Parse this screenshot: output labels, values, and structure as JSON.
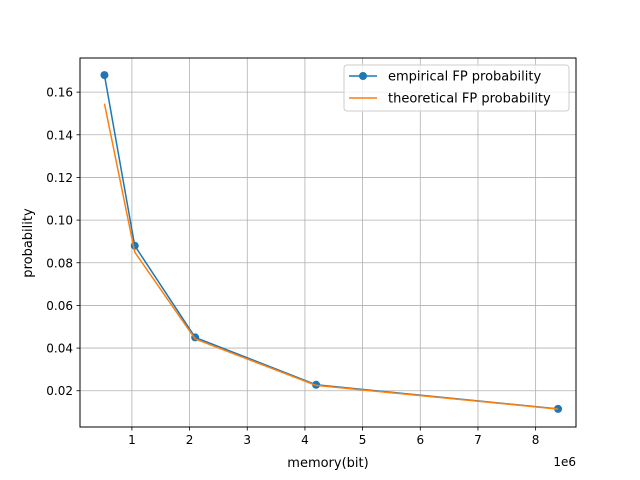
{
  "chart_data": {
    "type": "line",
    "xlabel": "memory(bit)",
    "ylabel": "probability",
    "x_offset_label": "1e6",
    "xlim": [
      0.1,
      8.7
    ],
    "ylim": [
      0.003,
      0.176
    ],
    "xticks": [
      1,
      2,
      3,
      4,
      5,
      6,
      7,
      8
    ],
    "xtick_labels": [
      "1",
      "2",
      "3",
      "4",
      "5",
      "6",
      "7",
      "8"
    ],
    "yticks": [
      0.02,
      0.04,
      0.06,
      0.08,
      0.1,
      0.12,
      0.14,
      0.16
    ],
    "ytick_labels": [
      "0.02",
      "0.04",
      "0.06",
      "0.08",
      "0.10",
      "0.12",
      "0.14",
      "0.16"
    ],
    "grid": true,
    "legend_position": "top-right",
    "series": [
      {
        "name": "empirical FP probability",
        "color": "#1f77b4",
        "marker": "circle",
        "x": [
          0.524,
          1.049,
          2.097,
          4.194,
          8.389
        ],
        "y": [
          0.168,
          0.088,
          0.045,
          0.0228,
          0.0115
        ]
      },
      {
        "name": "theoretical FP probability",
        "color": "#ff7f0e",
        "marker": "none",
        "x": [
          0.524,
          1.049,
          2.097,
          4.194,
          8.389
        ],
        "y": [
          0.1546,
          0.085,
          0.0443,
          0.0225,
          0.0114
        ]
      }
    ]
  }
}
